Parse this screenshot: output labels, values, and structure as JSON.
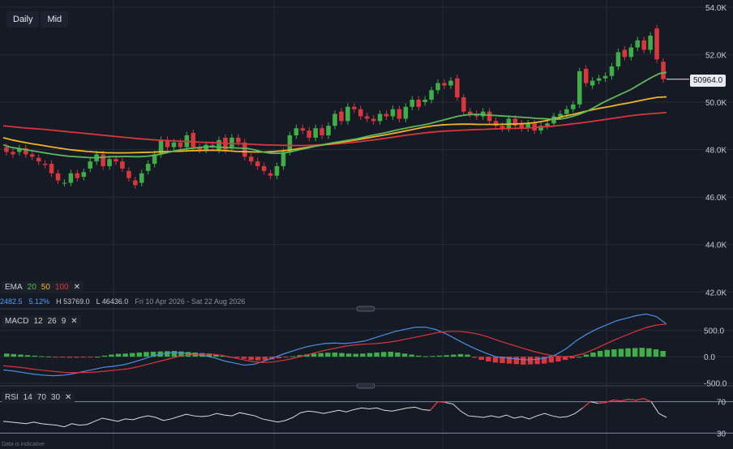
{
  "toolbar": {
    "daily_label": "Daily",
    "mid_label": "Mid"
  },
  "ema_legend": {
    "title": "EMA",
    "p1": "20",
    "p2": "50",
    "p3": "100",
    "c1": "#5cb85c",
    "c2": "#f0b429",
    "c3": "#d9363e"
  },
  "stats": {
    "change": "2482.5",
    "change_pct": "5.12%",
    "high": "H 53769.0",
    "low": "L 46436.0",
    "range": "Fri 10 Apr 2026 - Sat 22 Aug 2026"
  },
  "price_tag": "50964.0",
  "macd_legend": {
    "title": "MACD",
    "fast": "12",
    "slow": "26",
    "signal": "9"
  },
  "rsi_legend": {
    "title": "RSI",
    "period": "14",
    "upper": "70",
    "lower": "30"
  },
  "footnote": "Data is indicative",
  "chart_data": {
    "type": "candlestick",
    "price_axis": {
      "ticks": [
        "54.0K",
        "52.0K",
        "50.0K",
        "48.0K",
        "46.0K",
        "44.0K",
        "42.0K"
      ],
      "values": [
        54000,
        52000,
        50000,
        48000,
        46000,
        44000,
        42000
      ],
      "ylim": [
        41600,
        54300
      ]
    },
    "macd_axis": {
      "ticks": [
        "500.0",
        "0.0",
        "-500.0"
      ],
      "values": [
        500,
        0,
        -500
      ],
      "ylim": [
        -520,
        740
      ]
    },
    "rsi_axis": {
      "ticks": [
        "70",
        "30"
      ],
      "values": [
        70,
        30
      ],
      "ylim": [
        20,
        80
      ]
    },
    "colors": {
      "up": "#3fae48",
      "down": "#d9363e",
      "bg": "#161a24",
      "grid": "#262b38"
    },
    "candles": [
      [
        48100,
        47900
      ],
      [
        47900,
        47800
      ],
      [
        47900,
        48050
      ],
      [
        48050,
        47800
      ],
      [
        47800,
        47700
      ],
      [
        47650,
        47500
      ],
      [
        47400,
        47350
      ],
      [
        47400,
        47000
      ],
      [
        47000,
        46700
      ],
      [
        46600,
        46600
      ],
      [
        46600,
        47000
      ],
      [
        47000,
        46800
      ],
      [
        46850,
        47050
      ],
      [
        47200,
        47500
      ],
      [
        47500,
        47800
      ],
      [
        47800,
        47300
      ],
      [
        47300,
        47600
      ],
      [
        47600,
        47500
      ],
      [
        47500,
        47200
      ],
      [
        47100,
        46800
      ],
      [
        46700,
        46500
      ],
      [
        46600,
        47000
      ],
      [
        47100,
        47400
      ],
      [
        47400,
        47800
      ],
      [
        47800,
        48400
      ],
      [
        48400,
        48100
      ],
      [
        48100,
        48300
      ],
      [
        48300,
        48100
      ],
      [
        48100,
        48600
      ],
      [
        48700,
        48100
      ],
      [
        48100,
        48000
      ],
      [
        48000,
        48200
      ],
      [
        48200,
        48100
      ],
      [
        48000,
        48400
      ],
      [
        48500,
        48000
      ],
      [
        48100,
        48500
      ],
      [
        48500,
        48300
      ],
      [
        48300,
        47700
      ],
      [
        47700,
        47500
      ],
      [
        47500,
        47300
      ],
      [
        47300,
        47100
      ],
      [
        47000,
        46900
      ],
      [
        46900,
        47300
      ],
      [
        47300,
        47900
      ],
      [
        47900,
        48600
      ],
      [
        48600,
        48900
      ],
      [
        48900,
        48800
      ],
      [
        48800,
        48500
      ],
      [
        48500,
        48900
      ],
      [
        48900,
        48600
      ],
      [
        48600,
        49000
      ],
      [
        49000,
        49500
      ],
      [
        49600,
        49200
      ],
      [
        49200,
        49800
      ],
      [
        49800,
        49700
      ],
      [
        49700,
        49400
      ],
      [
        49400,
        49300
      ],
      [
        49300,
        49200
      ],
      [
        49200,
        49500
      ],
      [
        49500,
        49400
      ],
      [
        49400,
        49700
      ],
      [
        49700,
        49300
      ],
      [
        49300,
        49800
      ],
      [
        49800,
        50100
      ],
      [
        50100,
        49800
      ],
      [
        50000,
        50100
      ],
      [
        50100,
        50500
      ],
      [
        50500,
        50800
      ],
      [
        50800,
        50700
      ],
      [
        50700,
        50900
      ],
      [
        51000,
        50200
      ],
      [
        50200,
        49600
      ],
      [
        49600,
        49500
      ],
      [
        49500,
        49400
      ],
      [
        49400,
        49600
      ],
      [
        49600,
        49200
      ],
      [
        49200,
        49000
      ],
      [
        49000,
        48900
      ],
      [
        48900,
        49300
      ],
      [
        49300,
        49000
      ],
      [
        49100,
        48900
      ],
      [
        48900,
        49100
      ],
      [
        49100,
        48800
      ],
      [
        48800,
        49000
      ],
      [
        49000,
        49100
      ],
      [
        49100,
        49400
      ],
      [
        49400,
        49500
      ],
      [
        49500,
        49700
      ],
      [
        49700,
        49900
      ],
      [
        49900,
        51300
      ],
      [
        51400,
        50800
      ],
      [
        50700,
        50900
      ],
      [
        50900,
        51000
      ],
      [
        51000,
        51100
      ],
      [
        51100,
        51500
      ],
      [
        51500,
        52100
      ],
      [
        52200,
        51900
      ],
      [
        51900,
        52300
      ],
      [
        52300,
        52600
      ],
      [
        52600,
        52200
      ],
      [
        52200,
        52800
      ],
      [
        53100,
        51800
      ],
      [
        51700,
        50964
      ]
    ],
    "ema20": [
      48200,
      48100,
      48050,
      48000,
      47950,
      47900,
      47850,
      47800,
      47760,
      47720,
      47700,
      47680,
      47660,
      47660,
      47680,
      47700,
      47700,
      47710,
      47700,
      47700,
      47720,
      47760,
      47820,
      47890,
      47960,
      48010,
      48050,
      48080,
      48110,
      48120,
      48100,
      48080,
      48070,
      48060,
      48040,
      47980,
      47900,
      47850,
      47840,
      47860,
      47910,
      47990,
      48050,
      48120,
      48190,
      48250,
      48300,
      48350,
      48400,
      48450,
      48520,
      48590,
      48650,
      48710,
      48780,
      48850,
      48910,
      48970,
      49020,
      49080,
      49160,
      49240,
      49320,
      49400,
      49450,
      49480,
      49480,
      49460,
      49440,
      49420,
      49400,
      49380,
      49360,
      49340,
      49310,
      49300,
      49280,
      49280,
      49320,
      49400,
      49500,
      49620,
      49780,
      49950,
      50100,
      50240,
      50380,
      50520,
      50700,
      50880,
      51050,
      51200,
      51250
    ],
    "ema50": [
      48500,
      48400,
      48320,
      48250,
      48190,
      48120,
      48060,
      48000,
      47960,
      47920,
      47890,
      47870,
      47860,
      47860,
      47870,
      47880,
      47890,
      47910,
      47920,
      47930,
      47950,
      47960,
      47970,
      47970,
      47950,
      47920,
      47910,
      47900,
      47900,
      47920,
      47950,
      48000,
      48060,
      48120,
      48180,
      48240,
      48300,
      48360,
      48420,
      48490,
      48560,
      48630,
      48700,
      48780,
      48860,
      48940,
      49000,
      49040,
      49060,
      49070,
      49070,
      49060,
      49060,
      49060,
      49070,
      49080,
      49100,
      49140,
      49210,
      49300,
      49400,
      49480,
      49580,
      49670,
      49750,
      49820,
      49900,
      49970,
      50050,
      50130,
      50200,
      50220
    ],
    "ema100": [
      49000,
      48960,
      48920,
      48890,
      48860,
      48820,
      48780,
      48740,
      48700,
      48660,
      48620,
      48580,
      48540,
      48500,
      48460,
      48430,
      48400,
      48380,
      48360,
      48340,
      48320,
      48300,
      48290,
      48270,
      48250,
      48240,
      48220,
      48200,
      48190,
      48180,
      48170,
      48170,
      48180,
      48200,
      48220,
      48250,
      48290,
      48330,
      48380,
      48430,
      48490,
      48550,
      48610,
      48660,
      48710,
      48750,
      48780,
      48800,
      48820,
      48840,
      48850,
      48870,
      48880,
      48890,
      48900,
      48920,
      48950,
      48980,
      49020,
      49070,
      49120,
      49170,
      49230,
      49290,
      49350,
      49410,
      49460,
      49500,
      49530,
      49560
    ],
    "macd_hist": [
      60,
      50,
      40,
      30,
      20,
      10,
      5,
      -5,
      -15,
      -20,
      -18,
      -15,
      -10,
      0,
      20,
      40,
      55,
      60,
      70,
      80,
      90,
      95,
      100,
      105,
      110,
      100,
      90,
      80,
      70,
      60,
      40,
      20,
      0,
      -20,
      -40,
      -60,
      -70,
      -65,
      -50,
      -30,
      -10,
      10,
      30,
      45,
      60,
      70,
      75,
      80,
      70,
      60,
      55,
      60,
      70,
      80,
      90,
      95,
      80,
      60,
      40,
      20,
      10,
      15,
      20,
      30,
      40,
      50,
      40,
      -20,
      -60,
      -90,
      -110,
      -120,
      -130,
      -140,
      -150,
      -145,
      -140,
      -130,
      -110,
      -90,
      -60,
      -30,
      0,
      40,
      80,
      110,
      130,
      140,
      150,
      160,
      165,
      170,
      160,
      140,
      110
    ],
    "macd_line": [
      -250,
      -270,
      -300,
      -330,
      -350,
      -360,
      -350,
      -320,
      -280,
      -240,
      -200,
      -180,
      -150,
      -100,
      -40,
      20,
      60,
      80,
      70,
      50,
      20,
      -20,
      -80,
      -120,
      -160,
      -140,
      -80,
      -10,
      60,
      120,
      180,
      220,
      250,
      260,
      250,
      270,
      300,
      360,
      420,
      480,
      520,
      560,
      560,
      520,
      440,
      340,
      240,
      150,
      70,
      0,
      -20,
      -40,
      -60,
      -50,
      -20,
      40,
      150,
      300,
      420,
      520,
      600,
      680,
      730,
      780,
      810,
      760,
      620
    ],
    "signal_line": [
      -170,
      -190,
      -210,
      -240,
      -260,
      -280,
      -300,
      -300,
      -300,
      -290,
      -270,
      -250,
      -230,
      -190,
      -140,
      -90,
      -40,
      10,
      40,
      50,
      50,
      30,
      -10,
      -50,
      -90,
      -110,
      -100,
      -70,
      -30,
      20,
      70,
      120,
      160,
      200,
      225,
      240,
      250,
      270,
      300,
      340,
      380,
      420,
      460,
      480,
      480,
      460,
      420,
      360,
      290,
      230,
      170,
      110,
      60,
      20,
      0,
      10,
      60,
      140,
      230,
      320,
      400,
      480,
      550,
      600,
      620
    ],
    "rsi": [
      45,
      44,
      43,
      42,
      44,
      42,
      41,
      40,
      38,
      42,
      40,
      41,
      45,
      49,
      47,
      45,
      48,
      47,
      50,
      52,
      50,
      46,
      48,
      51,
      54,
      52,
      51,
      52,
      55,
      53,
      52,
      56,
      54,
      52,
      48,
      46,
      44,
      46,
      50,
      56,
      58,
      57,
      55,
      57,
      59,
      57,
      60,
      62,
      61,
      62,
      59,
      58,
      60,
      62,
      63,
      60,
      59,
      70,
      69,
      67,
      58,
      52,
      51,
      50,
      52,
      50,
      53,
      49,
      51,
      48,
      52,
      55,
      52,
      50,
      51,
      55,
      62,
      70,
      68,
      69,
      72,
      71,
      73,
      72,
      74,
      70,
      55,
      50
    ]
  }
}
